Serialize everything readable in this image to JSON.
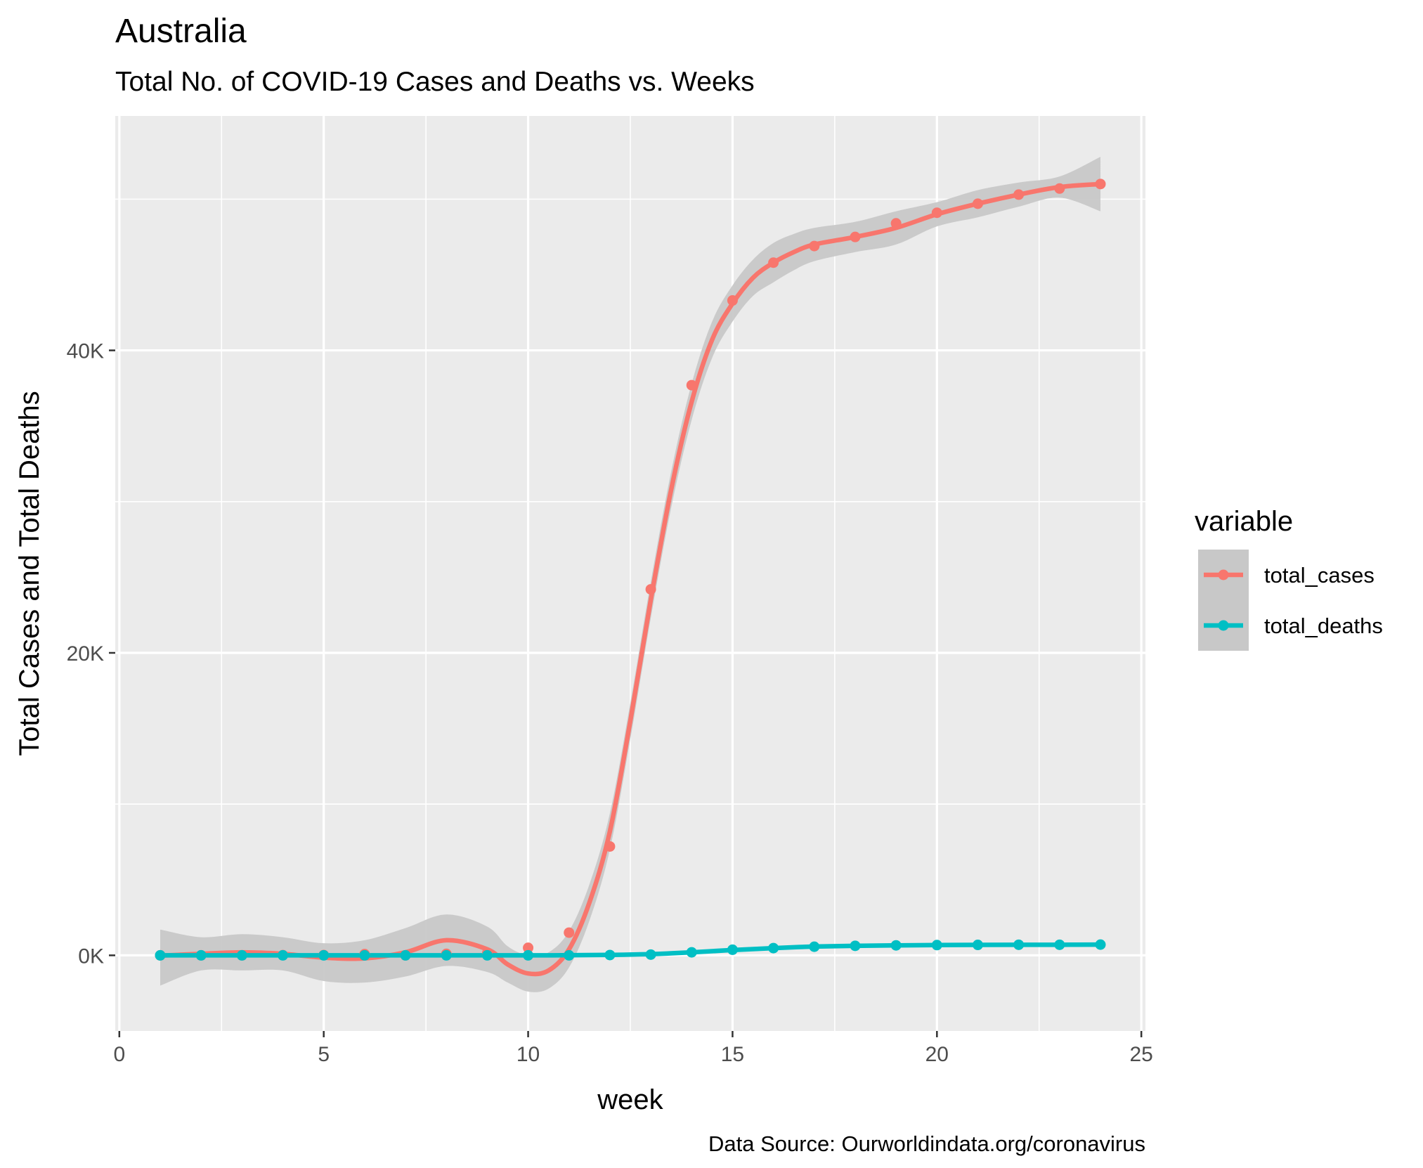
{
  "chart_data": {
    "type": "line",
    "title": "Australia",
    "subtitle": "Total No. of COVID-19 Cases and Deaths vs. Weeks",
    "xlabel": "week",
    "ylabel": "Total Cases and Total Deaths",
    "caption": "Data Source: Ourworldindata.org/coronavirus",
    "xlim": [
      -0.1,
      25.1
    ],
    "ylim": [
      -5000,
      55500
    ],
    "x_ticks": [
      0,
      5,
      10,
      15,
      20,
      25
    ],
    "x_tick_labels": [
      "0",
      "5",
      "10",
      "15",
      "20",
      "25"
    ],
    "y_ticks": [
      0,
      20000,
      40000
    ],
    "y_tick_labels": [
      "0K",
      "20K",
      "40K"
    ],
    "grid": true,
    "legend": {
      "title": "variable",
      "position": "right"
    },
    "x": [
      1,
      2,
      3,
      4,
      5,
      6,
      7,
      8,
      9,
      10,
      11,
      12,
      13,
      14,
      15,
      16,
      17,
      18,
      19,
      20,
      21,
      22,
      23,
      24
    ],
    "series": [
      {
        "name": "total_cases",
        "color": "#F8766D",
        "values": [
          0,
          0,
          0,
          10,
          20,
          80,
          0,
          100,
          150,
          500,
          1500,
          7200,
          24200,
          37700,
          43300,
          45800,
          46900,
          47500,
          48400,
          49100,
          49700,
          50300,
          50700,
          51000
        ],
        "smooth": [
          [
            1,
            -20
          ],
          [
            2,
            100
          ],
          [
            3,
            200
          ],
          [
            4,
            100
          ],
          [
            5,
            -150
          ],
          [
            6,
            -200
          ],
          [
            7,
            200
          ],
          [
            8,
            1000
          ],
          [
            9,
            400
          ],
          [
            9.5,
            -600
          ],
          [
            10,
            -1200
          ],
          [
            10.5,
            -1000
          ],
          [
            11,
            400
          ],
          [
            11.5,
            3500
          ],
          [
            12,
            8200
          ],
          [
            12.5,
            15500
          ],
          [
            13,
            23500
          ],
          [
            13.5,
            30800
          ],
          [
            14,
            36600
          ],
          [
            14.5,
            40700
          ],
          [
            15,
            43100
          ],
          [
            15.5,
            44800
          ],
          [
            16,
            45800
          ],
          [
            16.5,
            46500
          ],
          [
            17,
            47000
          ],
          [
            18,
            47500
          ],
          [
            19,
            48100
          ],
          [
            20,
            49000
          ],
          [
            21,
            49700
          ],
          [
            22,
            50300
          ],
          [
            23,
            50800
          ],
          [
            24,
            51000
          ]
        ]
      },
      {
        "name": "total_deaths",
        "color": "#00BFC4",
        "values": [
          0,
          0,
          0,
          0,
          0,
          0,
          0,
          0,
          0,
          0,
          0,
          20,
          50,
          200,
          370,
          480,
          570,
          630,
          660,
          680,
          690,
          700,
          700,
          710
        ],
        "smooth": [
          [
            1,
            0
          ],
          [
            5,
            0
          ],
          [
            10,
            0
          ],
          [
            11,
            10
          ],
          [
            12,
            30
          ],
          [
            13,
            80
          ],
          [
            14,
            200
          ],
          [
            15,
            350
          ],
          [
            16,
            480
          ],
          [
            17,
            580
          ],
          [
            18,
            630
          ],
          [
            19,
            660
          ],
          [
            20,
            680
          ],
          [
            21,
            690
          ],
          [
            22,
            700
          ],
          [
            23,
            700
          ],
          [
            24,
            710
          ]
        ]
      }
    ],
    "confidence_band": {
      "series": "total_cases",
      "color": "#c8c8c8",
      "upper": [
        [
          1,
          1700
        ],
        [
          2,
          1200
        ],
        [
          3,
          1400
        ],
        [
          4,
          1200
        ],
        [
          5,
          800
        ],
        [
          6,
          1000
        ],
        [
          7,
          1800
        ],
        [
          8,
          2700
        ],
        [
          9,
          1900
        ],
        [
          9.5,
          600
        ],
        [
          10,
          0
        ],
        [
          10.5,
          200
        ],
        [
          11,
          1600
        ],
        [
          11.5,
          4700
        ],
        [
          12,
          9400
        ],
        [
          12.5,
          16700
        ],
        [
          13,
          24700
        ],
        [
          13.5,
          32000
        ],
        [
          14,
          37800
        ],
        [
          14.5,
          41900
        ],
        [
          15,
          44300
        ],
        [
          15.5,
          46000
        ],
        [
          16,
          47100
        ],
        [
          16.5,
          47700
        ],
        [
          17,
          48100
        ],
        [
          18,
          48500
        ],
        [
          19,
          49200
        ],
        [
          20,
          49800
        ],
        [
          21,
          50600
        ],
        [
          22,
          51100
        ],
        [
          23,
          51500
        ],
        [
          24,
          52800
        ]
      ],
      "lower": [
        [
          24,
          49200
        ],
        [
          23,
          50100
        ],
        [
          22,
          49500
        ],
        [
          21,
          48800
        ],
        [
          20,
          48200
        ],
        [
          19,
          47000
        ],
        [
          18,
          46500
        ],
        [
          17,
          45900
        ],
        [
          16.5,
          45300
        ],
        [
          16,
          44500
        ],
        [
          15.5,
          43600
        ],
        [
          15,
          41900
        ],
        [
          14.5,
          39500
        ],
        [
          14,
          35400
        ],
        [
          13.5,
          29600
        ],
        [
          13,
          22300
        ],
        [
          12.5,
          14300
        ],
        [
          12,
          7000
        ],
        [
          11.5,
          2300
        ],
        [
          11,
          -800
        ],
        [
          10.5,
          -2200
        ],
        [
          10,
          -2400
        ],
        [
          9.5,
          -1800
        ],
        [
          9,
          -1100
        ],
        [
          8,
          -700
        ],
        [
          7,
          -1400
        ],
        [
          6,
          -1800
        ],
        [
          5,
          -1700
        ],
        [
          4,
          -1000
        ],
        [
          3,
          -1000
        ],
        [
          2,
          -1000
        ],
        [
          1,
          -2000
        ]
      ]
    }
  }
}
